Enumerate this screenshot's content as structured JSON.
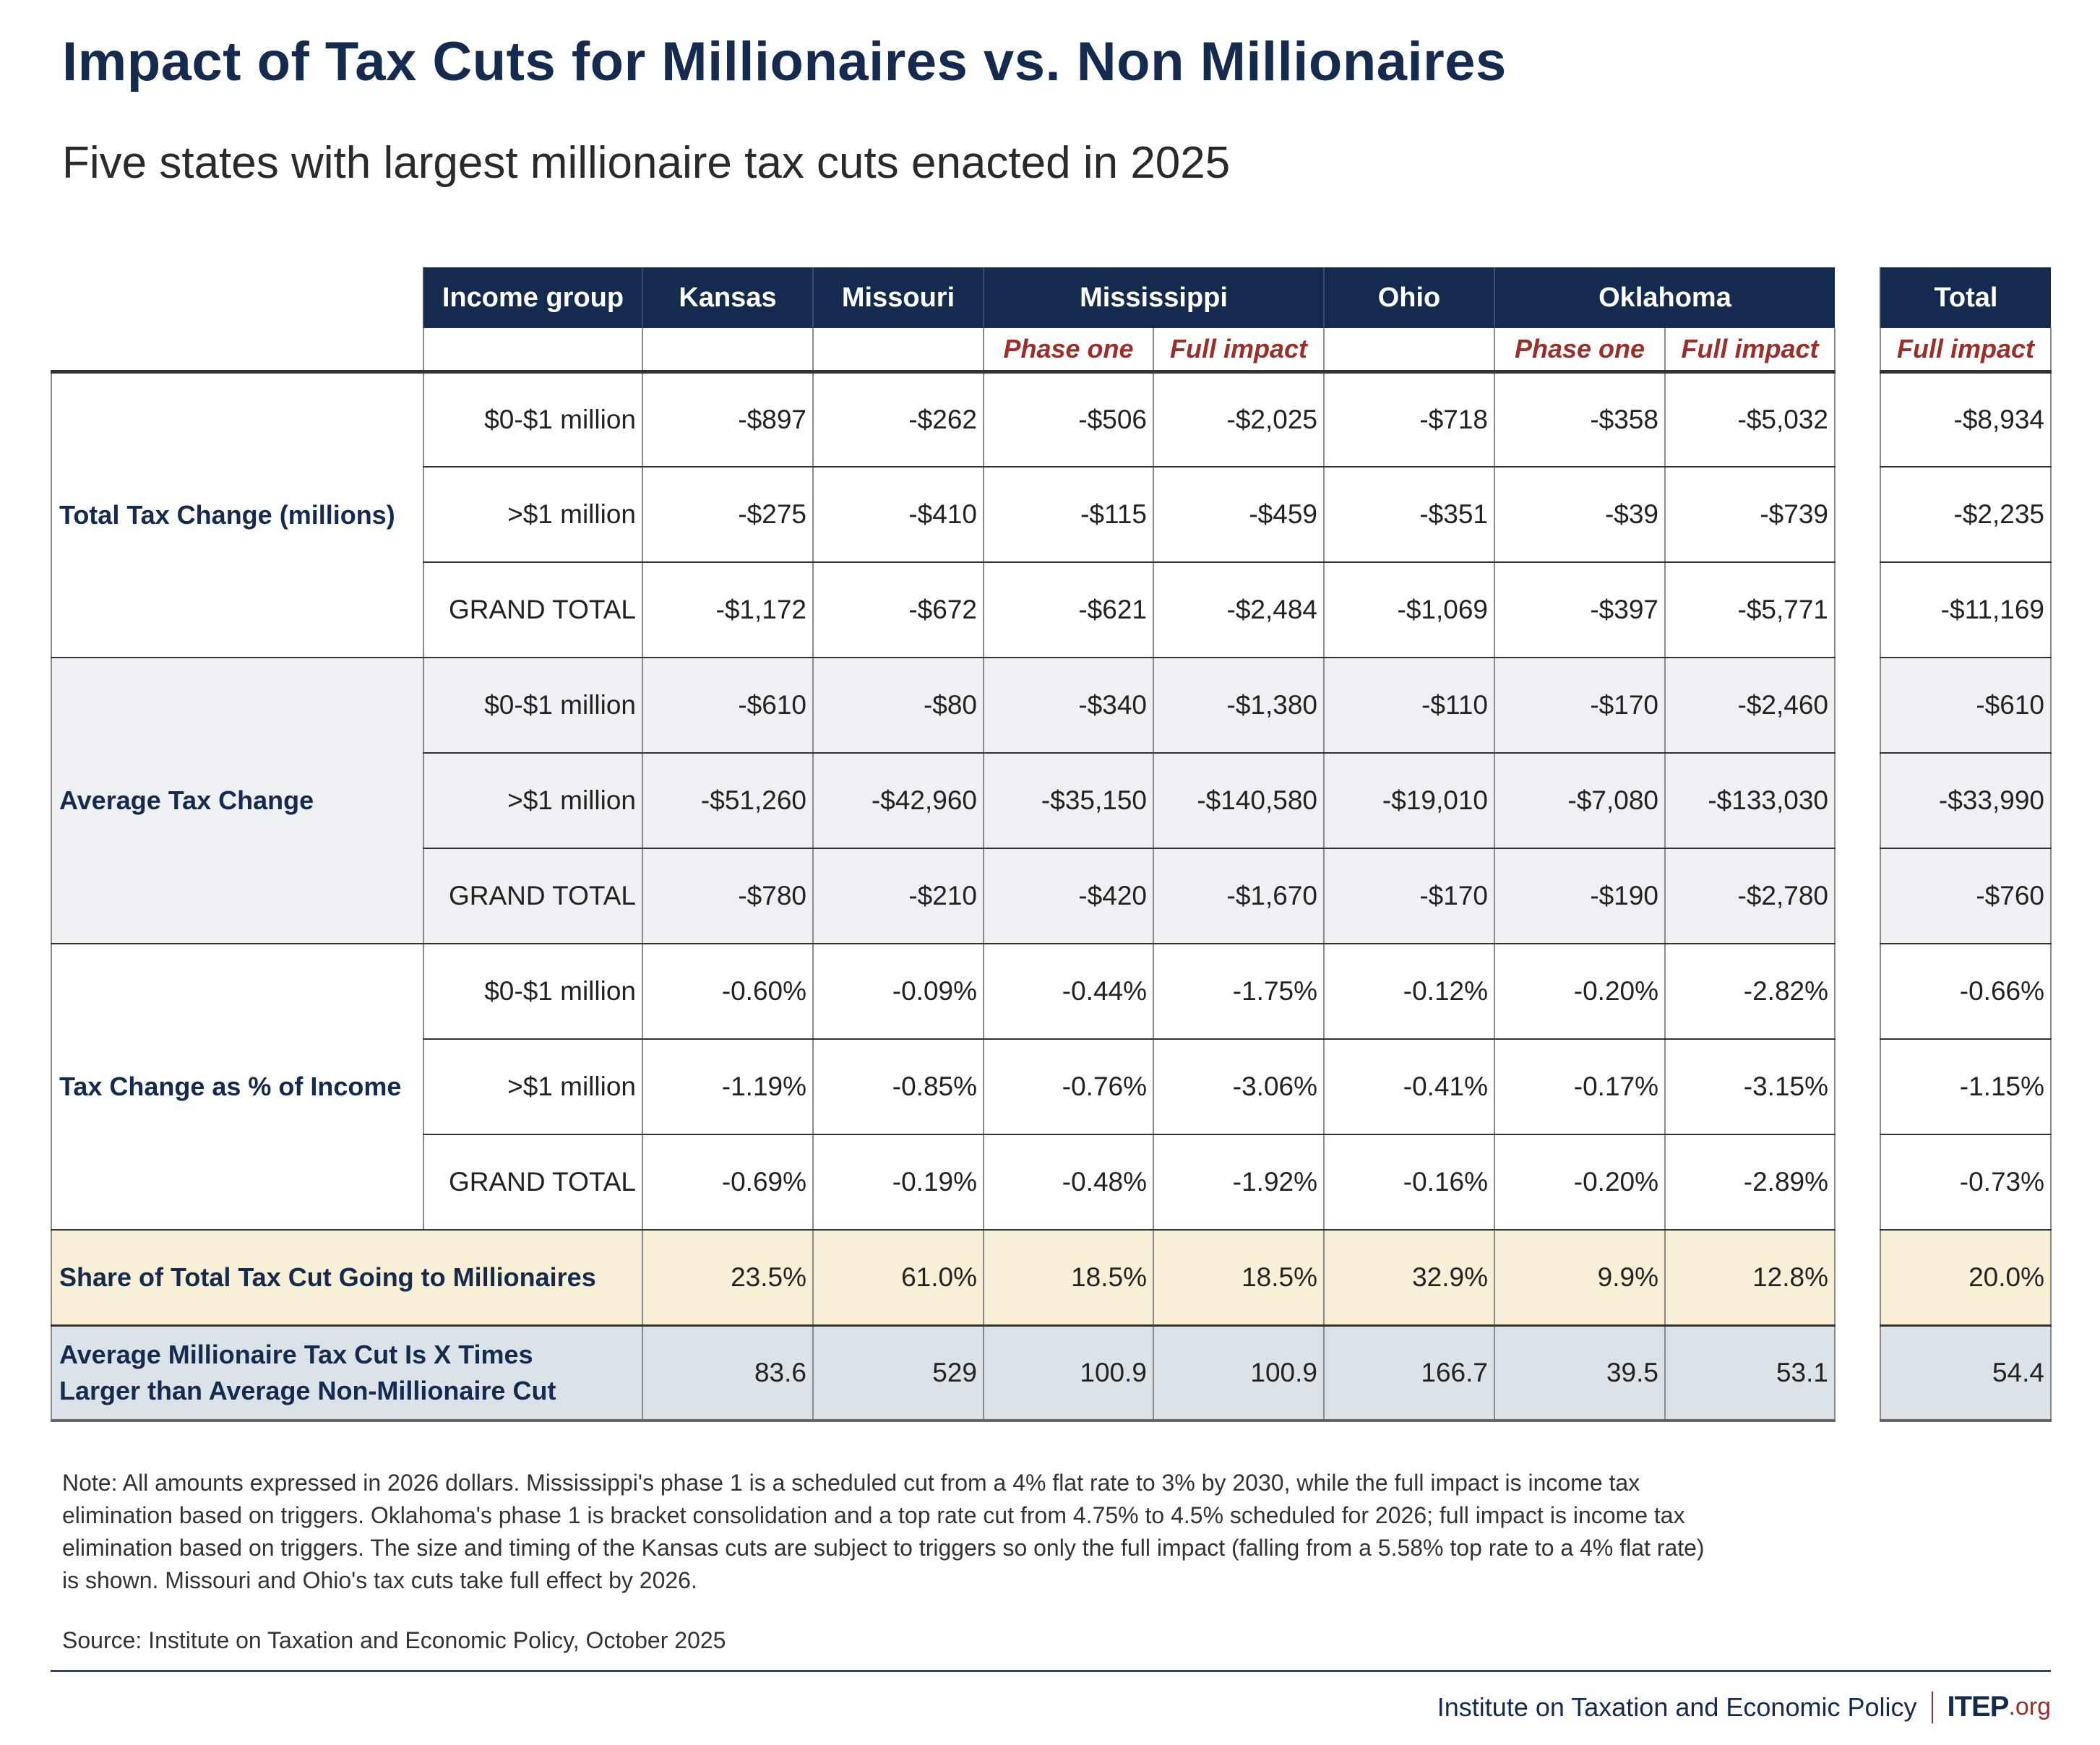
{
  "title": "Impact of Tax Cuts for Millionaires vs. Non Millionaires",
  "subtitle": "Five states with largest millionaire tax cuts enacted in 2025",
  "colors": {
    "header_bg": "#142a4f",
    "subheader_text": "#9b2f2a",
    "shaded_row": "#eff0f3",
    "share_row": "#f8f0d6",
    "ratio_row": "#dce3e8"
  },
  "table": {
    "header": {
      "income_group": "Income group",
      "states": [
        "Kansas",
        "Missouri",
        "Mississippi",
        "Ohio",
        "Oklahoma"
      ],
      "total": "Total"
    },
    "subheader": {
      "ms_phase": "Phase one",
      "ms_full": "Full impact",
      "ok_phase": "Phase one",
      "ok_full": "Full impact",
      "total_full": "Full impact"
    },
    "columns": [
      "Kansas",
      "Missouri",
      "Mississippi Phase one",
      "Mississippi Full impact",
      "Ohio",
      "Oklahoma Phase one",
      "Oklahoma Full impact",
      "Total Full impact"
    ],
    "groups": [
      {
        "label": "Total Tax Change (millions)",
        "rows": [
          {
            "income": "$0-$1 million",
            "values": [
              "-$897",
              "-$262",
              "-$506",
              "-$2,025",
              "-$718",
              "-$358",
              "-$5,032"
            ],
            "total": "-$8,934"
          },
          {
            "income": ">$1 million",
            "values": [
              "-$275",
              "-$410",
              "-$115",
              "-$459",
              "-$351",
              "-$39",
              "-$739"
            ],
            "total": "-$2,235"
          },
          {
            "income": "GRAND TOTAL",
            "values": [
              "-$1,172",
              "-$672",
              "-$621",
              "-$2,484",
              "-$1,069",
              "-$397",
              "-$5,771"
            ],
            "total": "-$11,169"
          }
        ]
      },
      {
        "label": "Average Tax Change",
        "rows": [
          {
            "income": "$0-$1 million",
            "values": [
              "-$610",
              "-$80",
              "-$340",
              "-$1,380",
              "-$110",
              "-$170",
              "-$2,460"
            ],
            "total": "-$610"
          },
          {
            "income": ">$1 million",
            "values": [
              "-$51,260",
              "-$42,960",
              "-$35,150",
              "-$140,580",
              "-$19,010",
              "-$7,080",
              "-$133,030"
            ],
            "total": "-$33,990"
          },
          {
            "income": "GRAND TOTAL",
            "values": [
              "-$780",
              "-$210",
              "-$420",
              "-$1,670",
              "-$170",
              "-$190",
              "-$2,780"
            ],
            "total": "-$760"
          }
        ]
      },
      {
        "label": "Tax Change as % of Income",
        "rows": [
          {
            "income": "$0-$1 million",
            "values": [
              "-0.60%",
              "-0.09%",
              "-0.44%",
              "-1.75%",
              "-0.12%",
              "-0.20%",
              "-2.82%"
            ],
            "total": "-0.66%"
          },
          {
            "income": ">$1 million",
            "values": [
              "-1.19%",
              "-0.85%",
              "-0.76%",
              "-3.06%",
              "-0.41%",
              "-0.17%",
              "-3.15%"
            ],
            "total": "-1.15%"
          },
          {
            "income": "GRAND TOTAL",
            "values": [
              "-0.69%",
              "-0.19%",
              "-0.48%",
              "-1.92%",
              "-0.16%",
              "-0.20%",
              "-2.89%"
            ],
            "total": "-0.73%"
          }
        ]
      }
    ],
    "share_row": {
      "label": "Share of Total Tax Cut Going to Millionaires",
      "values": [
        "23.5%",
        "61.0%",
        "18.5%",
        "18.5%",
        "32.9%",
        "9.9%",
        "12.8%"
      ],
      "total": "20.0%"
    },
    "ratio_row": {
      "label_line1": "Average Millionaire Tax Cut Is X Times",
      "label_line2": "Larger than Average Non-Millionaire Cut",
      "values": [
        "83.6",
        "529",
        "100.9",
        "100.9",
        "166.7",
        "39.5",
        "53.1"
      ],
      "total": "54.4"
    }
  },
  "note": "Note: All amounts expressed in 2026 dollars. Mississippi's phase 1 is a scheduled cut from a 4% flat rate to 3% by 2030, while the full impact is income tax elimination based on triggers. Oklahoma's phase 1 is bracket consolidation and a top rate cut from 4.75% to 4.5% scheduled for 2026; full impact is income tax elimination based on triggers. The size and timing of the Kansas cuts are subject to triggers so only the full impact (falling from a 5.58% top rate to a 4% flat rate) is shown. Missouri and Ohio's tax cuts take full effect by 2026.",
  "source": "Source: Institute on Taxation and Economic Policy, October 2025",
  "footer": {
    "org_name": "Institute on Taxation and Economic Policy",
    "logo_main": "ITEP",
    "logo_suffix": ".org"
  }
}
